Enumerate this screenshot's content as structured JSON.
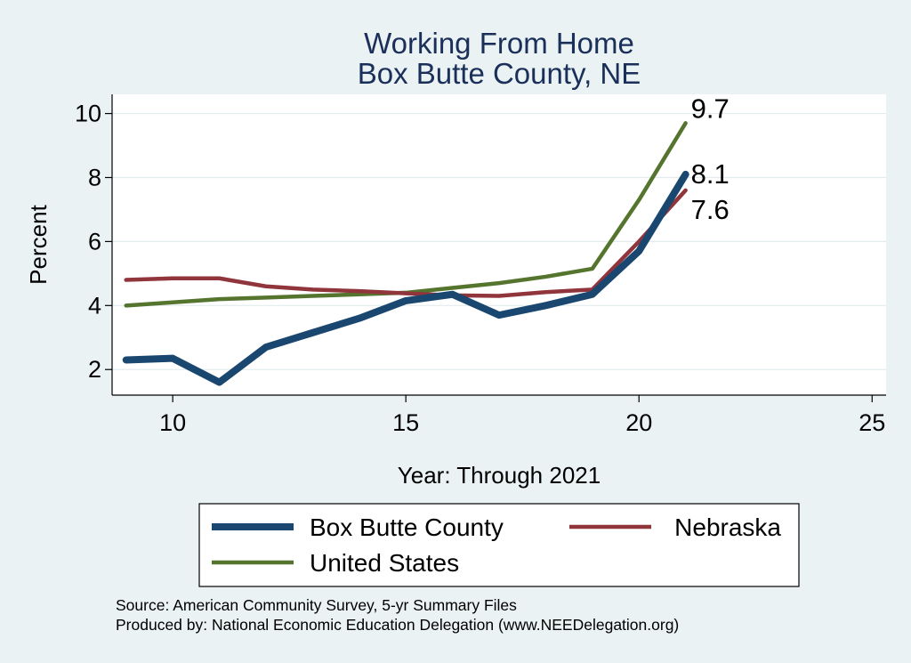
{
  "chart_data": {
    "type": "line",
    "title": [
      "Working From Home",
      "Box Butte County, NE"
    ],
    "xlabel": "Year: Through 2021",
    "ylabel": "Percent",
    "xlim": [
      8.7,
      25.3
    ],
    "ylim": [
      1.2,
      10.6
    ],
    "xticks": [
      10,
      15,
      20,
      25
    ],
    "yticks": [
      2,
      4,
      6,
      8,
      10
    ],
    "grid": true,
    "legend_position": "bottom",
    "series": [
      {
        "name": "Box Butte County",
        "color": "#1a476f",
        "x": [
          9,
          10,
          11,
          12,
          13,
          14,
          15,
          16,
          17,
          18,
          19,
          20,
          21
        ],
        "y": [
          2.3,
          2.35,
          1.6,
          2.7,
          3.15,
          3.6,
          4.15,
          4.35,
          3.7,
          4.0,
          4.35,
          5.7,
          8.1
        ],
        "end_label": "8.1"
      },
      {
        "name": "Nebraska",
        "color": "#90353b",
        "x": [
          9,
          10,
          11,
          12,
          13,
          14,
          15,
          16,
          17,
          18,
          19,
          20,
          21
        ],
        "y": [
          4.8,
          4.85,
          4.85,
          4.6,
          4.5,
          4.45,
          4.38,
          4.32,
          4.3,
          4.42,
          4.5,
          6.0,
          7.6
        ],
        "end_label": "7.6"
      },
      {
        "name": "United States",
        "color": "#55752f",
        "x": [
          9,
          10,
          11,
          12,
          13,
          14,
          15,
          16,
          17,
          18,
          19,
          20,
          21
        ],
        "y": [
          4.0,
          4.1,
          4.2,
          4.25,
          4.3,
          4.35,
          4.4,
          4.55,
          4.7,
          4.9,
          5.15,
          7.3,
          9.7
        ],
        "end_label": "9.7"
      }
    ],
    "notes": [
      "Source: American Community Survey, 5-yr Summary Files",
      "Produced by: National Economic Education Delegation (www.NEEDelegation.org)"
    ]
  }
}
